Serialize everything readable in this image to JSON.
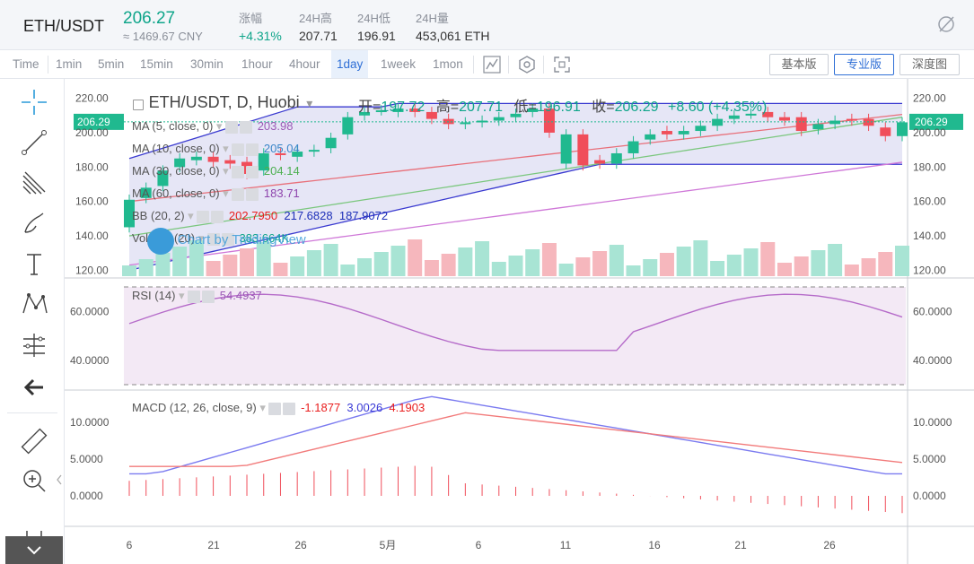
{
  "header": {
    "pair": "ETH/USDT",
    "price": "206.27",
    "cny": "≈ 1469.67 CNY",
    "stats": [
      {
        "label": "涨幅",
        "value": "+4.31%",
        "positive": true
      },
      {
        "label": "24H高",
        "value": "207.71"
      },
      {
        "label": "24H低",
        "value": "196.91"
      },
      {
        "label": "24H量",
        "value": "453,061 ETH"
      }
    ]
  },
  "toolbar": {
    "timeframes": [
      "Time",
      "1min",
      "5min",
      "15min",
      "30min",
      "1hour",
      "4hour",
      "1day",
      "1week",
      "1mon"
    ],
    "active_timeframe": "1day",
    "views": [
      "基本版",
      "专业版",
      "深度图"
    ],
    "active_view": "专业版"
  },
  "left_tools": [
    "crosshair-icon",
    "trend-line-icon",
    "fib-icon",
    "brush-icon",
    "text-icon",
    "pattern-icon",
    "prediction-icon",
    "back-arrow-icon",
    "ruler-icon",
    "zoom-in-icon",
    "magnet-icon",
    "collapse-icon"
  ],
  "chart": {
    "title": "ETH/USDT, D, Huobi",
    "ohlc": {
      "open_label": "开=",
      "open": "197.72",
      "high_label": "高=",
      "high": "207.71",
      "low_label": "低=",
      "low": "196.91",
      "close_label": "收=",
      "close": "206.29",
      "change": "+8.60 (+4.35%)"
    },
    "indicators": [
      {
        "label": "MA (5, close, 0)",
        "value": "203.98",
        "color": "#9b59b6"
      },
      {
        "label": "MA (10, close, 0)",
        "value": "205.04",
        "color": "#3a86c8"
      },
      {
        "label": "MA (30, close, 0)",
        "value": "204.14",
        "color": "#4caf50"
      },
      {
        "label": "MA (60, close, 0)",
        "value": "183.71",
        "color": "#8e44ad"
      },
      {
        "label": "BB (20, 2)",
        "values": [
          "202.7950",
          "217.6828",
          "187.9072"
        ],
        "colors": [
          "#e91e1e",
          "#1d2fb8",
          "#1d2fb8"
        ]
      },
      {
        "label": "Volume (20)",
        "value": "383.664K",
        "color": "#0fa58a"
      }
    ],
    "watermark": "Chart by TradingView",
    "current_price_tag": "206.29",
    "price_axis": [
      "220.00",
      "200.00",
      "180.00",
      "160.00",
      "140.00",
      "120.00"
    ],
    "rsi": {
      "label": "RSI (14)",
      "value": "54.4937",
      "axis": [
        "60.0000",
        "40.0000"
      ]
    },
    "macd": {
      "label": "MACD (12, 26, close, 9)",
      "values": [
        "-1.1877",
        "3.0026",
        "4.1903"
      ],
      "axis": [
        "10.0000",
        "5.0000",
        "0.0000"
      ]
    },
    "time_axis": [
      "6",
      "21",
      "26",
      "5月",
      "6",
      "11",
      "16",
      "21",
      "26"
    ]
  },
  "chart_data": {
    "type": "candlestick",
    "title": "ETH/USDT, D, Huobi",
    "candles_close": [
      161,
      168,
      178,
      185,
      186,
      183,
      182,
      176,
      188,
      187,
      189,
      190,
      197,
      209,
      212,
      213,
      214,
      212,
      208,
      205,
      206,
      207,
      209,
      211,
      214,
      200,
      199,
      181,
      182,
      188,
      195,
      199,
      199,
      201,
      204,
      208,
      210,
      211,
      209,
      207,
      201,
      205,
      207,
      207,
      204,
      198,
      206
    ],
    "candles_open": [
      145,
      162,
      169,
      180,
      184,
      186,
      184,
      183,
      178,
      188,
      186,
      189,
      191,
      199,
      210,
      213,
      212,
      214,
      212,
      208,
      205,
      206,
      207,
      209,
      212,
      214,
      182,
      199,
      184,
      182,
      188,
      196,
      201,
      199,
      201,
      204,
      208,
      211,
      212,
      209,
      209,
      202,
      205,
      208,
      208,
      203,
      198
    ],
    "bb_upper_label": "217.6828",
    "bb_lower_label": "187.9072",
    "rsi_range": [
      30,
      70
    ],
    "ylim": [
      115,
      225
    ]
  }
}
